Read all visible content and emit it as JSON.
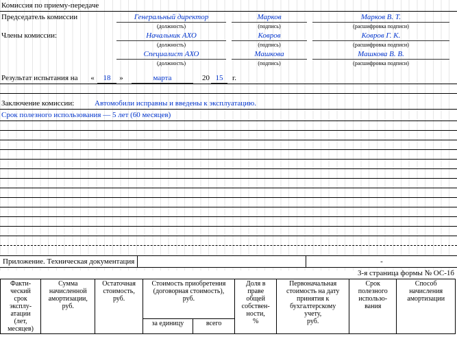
{
  "header": {
    "title": "Комиссия по приему-передаче"
  },
  "chair": {
    "label": "Председатель комиссии",
    "position": "Генеральный директор",
    "signature": "Марков",
    "decoded": "Марков В. Т."
  },
  "caps": {
    "position": "(должность)",
    "signature": "(подпись)",
    "decoded": "(расшифровка подписи)"
  },
  "membersLabel": "Члены комиссии:",
  "members": [
    {
      "position": "Начальник АХО",
      "signature": "Ковров",
      "decoded": "Ковров Г. К."
    },
    {
      "position": "Специалист АХО",
      "signature": "Машкова",
      "decoded": "Машкова В. В."
    }
  ],
  "result": {
    "label": "Результат испытания на",
    "openQuote": "«",
    "day": "18",
    "closeQuote": "»",
    "month": "марта",
    "centuryPrefix": "20",
    "year2": "15",
    "yearSuffix": "г."
  },
  "conclusion": {
    "label": "Заключение комиссии:",
    "text": "Автомобили исправны и введены к эксплуатацию.",
    "line2": "Срок полезного использования — 5 лет (60 месяцев)"
  },
  "attachment": {
    "label": "Приложение. Техническая документация",
    "dash": "-"
  },
  "pageNote": "3-я страница формы № ОС-1б",
  "table": {
    "h": {
      "c1": "Факти-\nческий\nсрок\nэксплу-\nатации\n(лет,\nмесяцев)",
      "c2": "Сумма\nначисленной\nамортизации,\nруб.",
      "c3": "Остаточная\nстоимость,\nруб.",
      "c4": "Стоимость приобретения\n(договорная стоимость),\nруб.",
      "c4a": "за единицу",
      "c4b": "всего",
      "c5": "Доля в\nправе\nобщей\nсобствен-\nности,\n%",
      "c6": "Первоначальная\nстоимость на дату\nпринятия к\nбухгалтерскому\nучету,\nруб.",
      "c7": "Срок\nполезного\nиспользо-\nвания",
      "c8": "Способ\nначисления\nамортизации"
    }
  }
}
